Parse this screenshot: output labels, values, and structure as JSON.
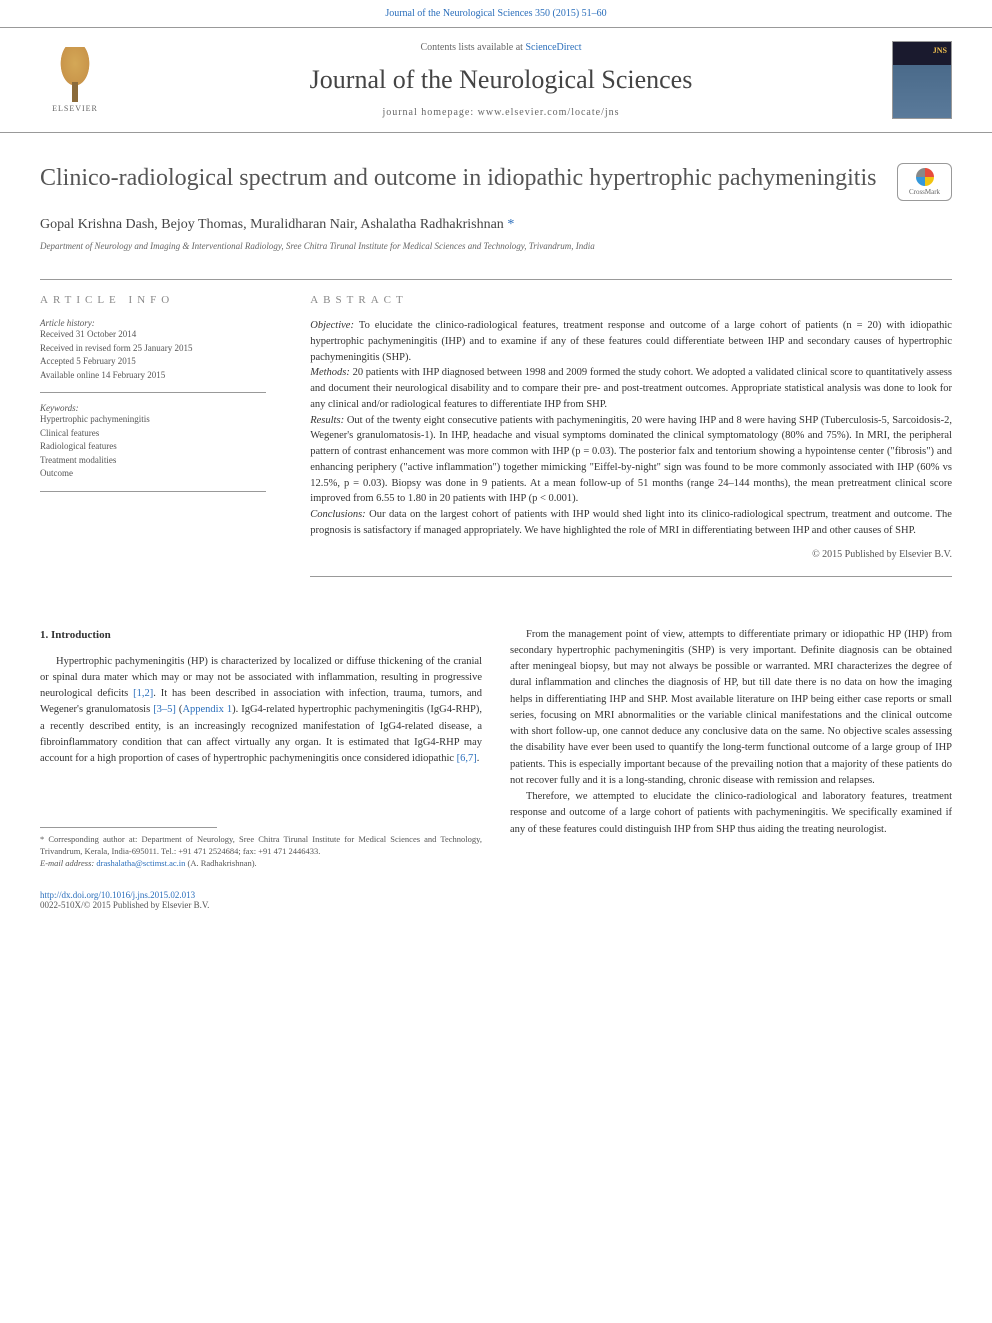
{
  "top_citation": "Journal of the Neurological Sciences 350 (2015) 51–60",
  "header": {
    "publisher": "ELSEVIER",
    "contents_text": "Contents lists available at ",
    "contents_link": "ScienceDirect",
    "journal_name": "Journal of the Neurological Sciences",
    "homepage_label": "journal homepage: ",
    "homepage_url": "www.elsevier.com/locate/jns"
  },
  "crossmark_label": "CrossMark",
  "article": {
    "title": "Clinico-radiological spectrum and outcome in idiopathic hypertrophic pachymeningitis",
    "authors": "Gopal Krishna Dash, Bejoy Thomas, Muralidharan Nair, Ashalatha Radhakrishnan ",
    "corr_symbol": "*",
    "affiliation": "Department of Neurology and Imaging & Interventional Radiology, Sree Chitra Tirunal Institute for Medical Sciences and Technology, Trivandrum, India"
  },
  "info": {
    "heading": "ARTICLE INFO",
    "history_label": "Article history:",
    "history_lines": "Received 31 October 2014\nReceived in revised form 25 January 2015\nAccepted 5 February 2015\nAvailable online 14 February 2015",
    "keywords_label": "Keywords:",
    "keywords": "Hypertrophic pachymeningitis\nClinical features\nRadiological features\nTreatment modalities\nOutcome"
  },
  "abstract": {
    "heading": "ABSTRACT",
    "objective_label": "Objective: ",
    "objective": "To elucidate the clinico-radiological features, treatment response and outcome of a large cohort of patients (n = 20) with idiopathic hypertrophic pachymeningitis (IHP) and to examine if any of these features could differentiate between IHP and secondary causes of hypertrophic pachymeningitis (SHP).",
    "methods_label": "Methods: ",
    "methods": "20 patients with IHP diagnosed between 1998 and 2009 formed the study cohort. We adopted a validated clinical score to quantitatively assess and document their neurological disability and to compare their pre- and post-treatment outcomes. Appropriate statistical analysis was done to look for any clinical and/or radiological features to differentiate IHP from SHP.",
    "results_label": "Results: ",
    "results": "Out of the twenty eight consecutive patients with pachymeningitis, 20 were having IHP and 8 were having SHP (Tuberculosis-5, Sarcoidosis-2, Wegener's granulomatosis-1). In IHP, headache and visual symptoms dominated the clinical symptomatology (80% and 75%). In MRI, the peripheral pattern of contrast enhancement was more common with IHP (p = 0.03). The posterior falx and tentorium showing a hypointense center (\"fibrosis\") and enhancing periphery (\"active inflammation\") together mimicking \"Eiffel-by-night\" sign was found to be more commonly associated with IHP (60% vs 12.5%, p = 0.03). Biopsy was done in 9 patients. At a mean follow-up of 51 months (range 24–144 months), the mean pretreatment clinical score improved from 6.55 to 1.80 in 20 patients with IHP (p < 0.001).",
    "conclusions_label": "Conclusions: ",
    "conclusions": "Our data on the largest cohort of patients with IHP would shed light into its clinico-radiological spectrum, treatment and outcome. The prognosis is satisfactory if managed appropriately. We have highlighted the role of MRI in differentiating between IHP and other causes of SHP.",
    "copyright": "© 2015 Published by Elsevier B.V."
  },
  "introduction": {
    "heading": "1. Introduction",
    "para1_a": "Hypertrophic pachymeningitis (HP) is characterized by localized or diffuse thickening of the cranial or spinal dura mater which may or may not be associated with inflammation, resulting in progressive neurological deficits ",
    "ref1": "[1,2]",
    "para1_b": ". It has been described in association with infection, trauma, tumors, and Wegener's granulomatosis ",
    "ref2": "[3–5]",
    "para1_c": " (",
    "appendix_ref": "Appendix 1",
    "para1_d": "). IgG4-related hypertrophic pachymeningitis (IgG4-RHP), a recently described entity, is an increasingly recognized manifestation of IgG4-related disease, a fibroinflammatory condition that can affect virtually any organ. It is estimated that IgG4-RHP may account for a high proportion of cases of hypertrophic pachymeningitis once considered idiopathic ",
    "ref3": "[6,7]",
    "para1_e": ".",
    "para2": "From the management point of view, attempts to differentiate primary or idiopathic HP (IHP) from secondary hypertrophic pachymeningitis (SHP) is very important. Definite diagnosis can be obtained after meningeal biopsy, but may not always be possible or warranted. MRI characterizes the degree of dural inflammation and clinches the diagnosis of HP, but till date there is no data on how the imaging helps in differentiating IHP and SHP. Most available literature on IHP being either case reports or small series, focusing on MRI abnormalities or the variable clinical manifestations and the clinical outcome with short follow-up, one cannot deduce any conclusive data on the same. No objective scales assessing the disability have ever been used to quantify the long-term functional outcome of a large group of IHP patients. This is especially important because of the prevailing notion that a majority of these patients do not recover fully and it is a long-standing, chronic disease with remission and relapses.",
    "para3": "Therefore, we attempted to elucidate the clinico-radiological and laboratory features, treatment response and outcome of a large cohort of patients with pachymeningitis. We specifically examined if any of these features could distinguish IHP from SHP thus aiding the treating neurologist."
  },
  "footnote": {
    "corr": "* Corresponding author at: Department of Neurology, Sree Chitra Tirunal Institute for Medical Sciences and Technology, Trivandrum, Kerala, India-695011. Tel.: +91 471 2524684; fax: +91 471 2446433.",
    "email_label": "E-mail address: ",
    "email": "drashalatha@sctimst.ac.in",
    "email_name": " (A. Radhakrishnan)."
  },
  "footer": {
    "doi": "http://dx.doi.org/10.1016/j.jns.2015.02.013",
    "issn": "0022-510X/© 2015 Published by Elsevier B.V."
  },
  "colors": {
    "link": "#2a6ebb",
    "text": "#333333",
    "muted": "#666666",
    "border": "#999999"
  }
}
